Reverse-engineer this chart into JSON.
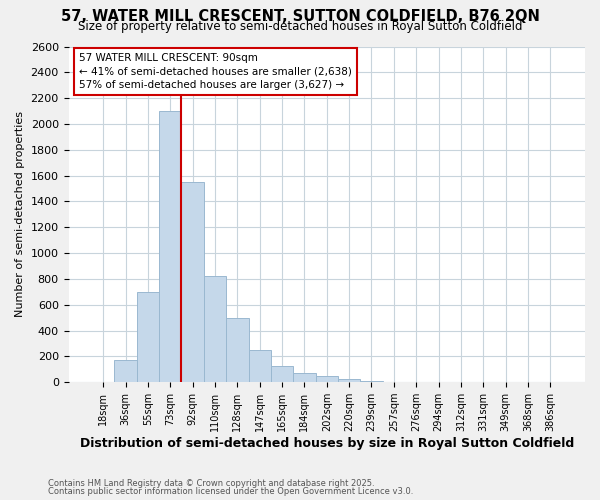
{
  "title": "57, WATER MILL CRESCENT, SUTTON COLDFIELD, B76 2QN",
  "subtitle": "Size of property relative to semi-detached houses in Royal Sutton Coldfield",
  "xlabel": "Distribution of semi-detached houses by size in Royal Sutton Coldfield",
  "ylabel": "Number of semi-detached properties",
  "categories": [
    "18sqm",
    "36sqm",
    "55sqm",
    "73sqm",
    "92sqm",
    "110sqm",
    "128sqm",
    "147sqm",
    "165sqm",
    "184sqm",
    "202sqm",
    "220sqm",
    "239sqm",
    "257sqm",
    "276sqm",
    "294sqm",
    "312sqm",
    "331sqm",
    "349sqm",
    "368sqm",
    "386sqm"
  ],
  "values": [
    5,
    175,
    700,
    2100,
    1550,
    825,
    500,
    250,
    125,
    75,
    50,
    25,
    10,
    5,
    5,
    2,
    2,
    2,
    2,
    2,
    2
  ],
  "bar_color": "#c5d8ea",
  "bar_edge_color": "#9ab8d0",
  "property_line_idx": 4,
  "property_line_color": "#cc0000",
  "annotation_title": "57 WATER MILL CRESCENT: 90sqm",
  "annotation_line1": "← 41% of semi-detached houses are smaller (2,638)",
  "annotation_line2": "57% of semi-detached houses are larger (3,627) →",
  "annotation_box_color": "#cc0000",
  "ylim": [
    0,
    2600
  ],
  "yticks": [
    0,
    200,
    400,
    600,
    800,
    1000,
    1200,
    1400,
    1600,
    1800,
    2000,
    2200,
    2400,
    2600
  ],
  "footnote1": "Contains HM Land Registry data © Crown copyright and database right 2025.",
  "footnote2": "Contains public sector information licensed under the Open Government Licence v3.0.",
  "bg_color": "#f0f0f0",
  "plot_bg_color": "#ffffff",
  "grid_color": "#c8d4dc"
}
